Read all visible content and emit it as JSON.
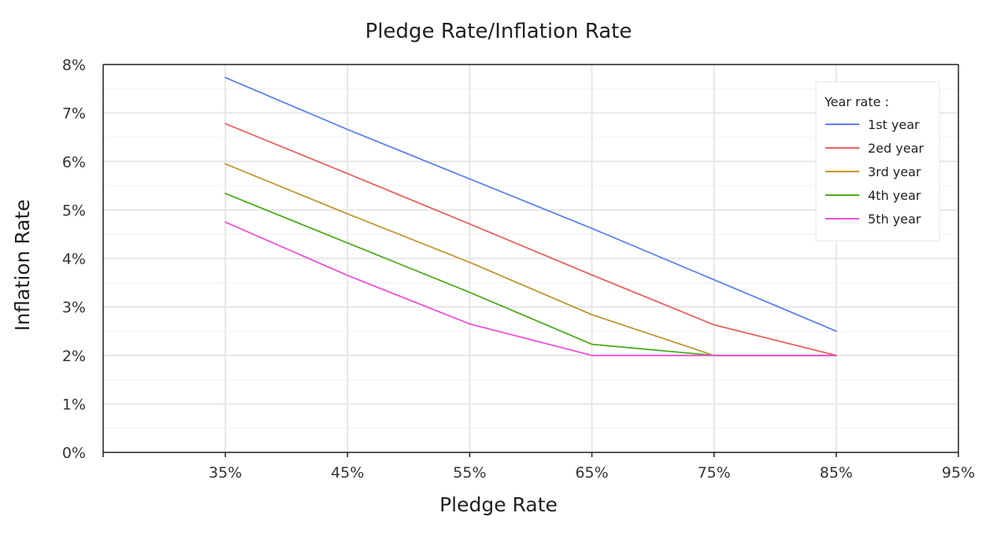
{
  "chart_data": {
    "type": "line",
    "title": "Pledge Rate/Inflation Rate",
    "xlabel": "Pledge Rate",
    "ylabel": "Inflation Rate",
    "x_ticks": [
      "35%",
      "45%",
      "55%",
      "65%",
      "75%",
      "85%",
      "95%"
    ],
    "y_ticks": [
      "0%",
      "1%",
      "2%",
      "3%",
      "4%",
      "5%",
      "6%",
      "7%",
      "8%"
    ],
    "xlim": [
      25,
      95
    ],
    "ylim": [
      0,
      8
    ],
    "grid": true,
    "legend": {
      "title": "Year rate :",
      "placement": "top-right"
    },
    "x": [
      35,
      45,
      55,
      65,
      75,
      85
    ],
    "series": [
      {
        "name": "1st year",
        "color": "#5b7ff0",
        "values": [
          7.73,
          6.66,
          5.64,
          4.62,
          3.56,
          2.5
        ]
      },
      {
        "name": "2ed year",
        "color": "#ea5f5f",
        "values": [
          6.78,
          5.75,
          4.71,
          3.66,
          2.63,
          2.0
        ]
      },
      {
        "name": "3rd year",
        "color": "#bf962f",
        "values": [
          5.95,
          4.92,
          3.92,
          2.84,
          2.0,
          2.0
        ]
      },
      {
        "name": "4th year",
        "color": "#4caa1a",
        "values": [
          5.34,
          4.32,
          3.3,
          2.23,
          2.0,
          2.0
        ]
      },
      {
        "name": "5th year",
        "color": "#ee4fd8",
        "values": [
          4.75,
          3.65,
          2.65,
          2.0,
          2.0,
          2.0
        ]
      }
    ]
  }
}
